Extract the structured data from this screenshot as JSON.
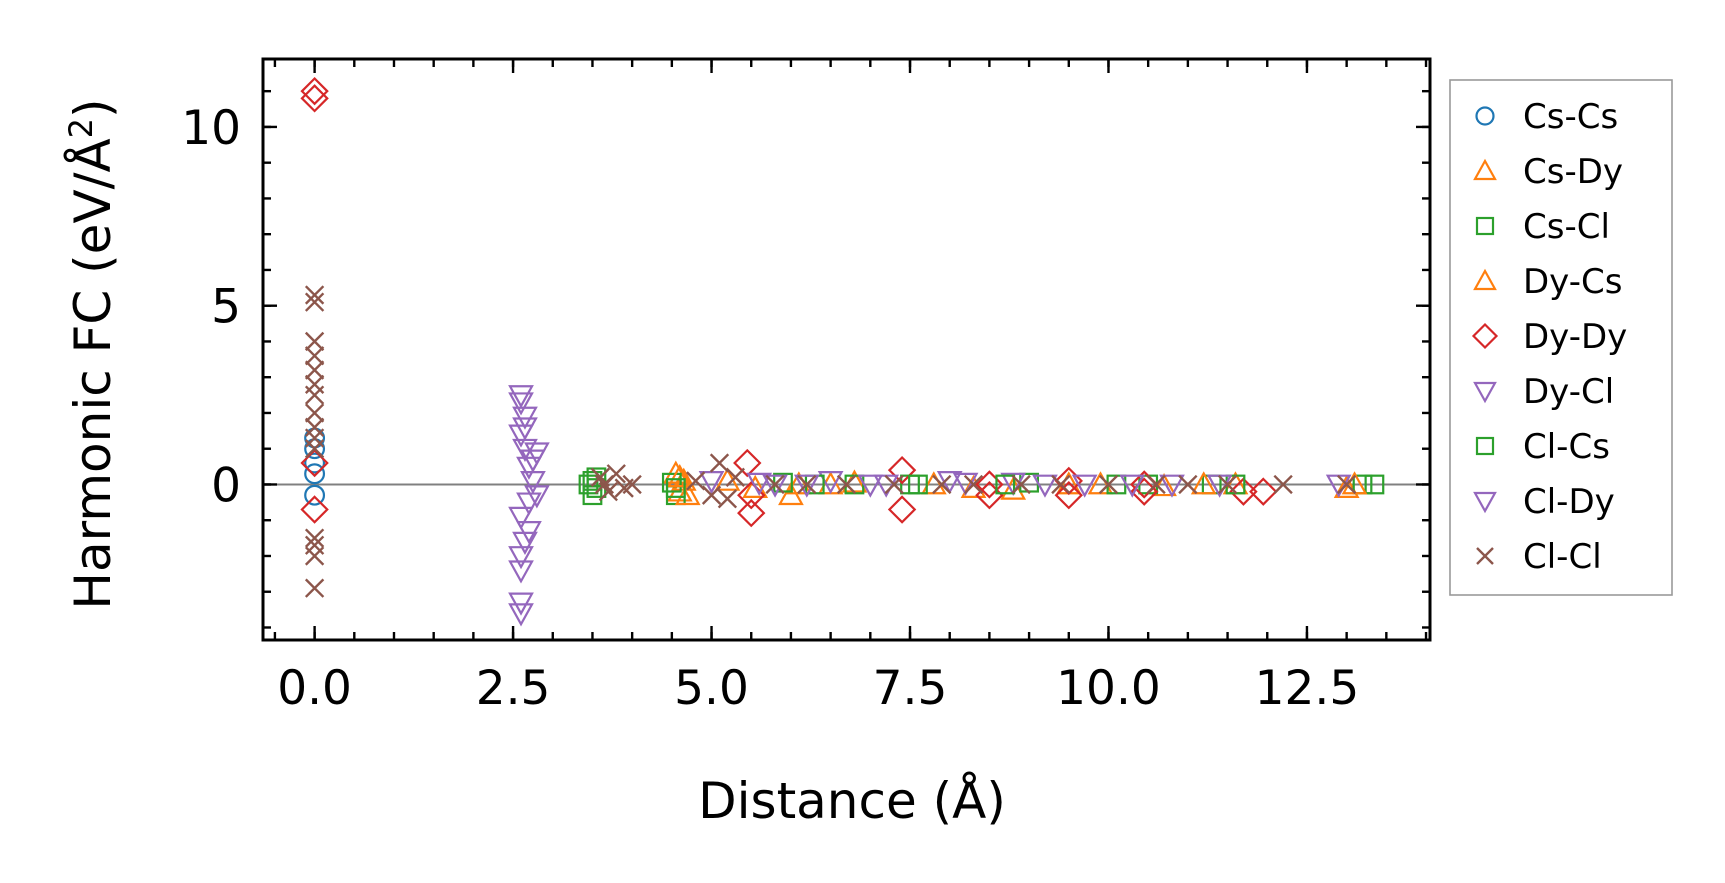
{
  "chart_data": {
    "type": "scatter",
    "title": "",
    "xlabel": "Distance (Å)",
    "ylabel_main": "Harmonic FC (eV/Å",
    "ylabel_sup": "2",
    "ylabel_close": ")",
    "xlim": [
      -0.65,
      14.05
    ],
    "ylim": [
      -4.35,
      11.9
    ],
    "xticks": [
      0.0,
      2.5,
      5.0,
      7.5,
      10.0,
      12.5
    ],
    "xtick_labels": [
      "0.0",
      "2.5",
      "5.0",
      "7.5",
      "10.0",
      "12.5"
    ],
    "yticks": [
      0,
      5,
      10
    ],
    "ytick_labels": [
      "0",
      "5",
      "10"
    ],
    "x_minor_step": 0.5,
    "y_minor_step": 1,
    "zero_line": true,
    "legend_position": "right, outside plot",
    "series": [
      {
        "name": "Cs-Cs",
        "marker": "circle",
        "color": "#1f77b4",
        "points": [
          [
            0,
            1.3
          ],
          [
            0,
            1.0
          ],
          [
            0,
            0.6
          ],
          [
            0,
            0.3
          ],
          [
            0,
            -0.3
          ]
        ]
      },
      {
        "name": "Cs-Dy",
        "marker": "triangle-up",
        "color": "#ff7f0e",
        "points": [
          [
            4.55,
            0.3
          ],
          [
            4.6,
            -0.2
          ],
          [
            4.65,
            0.1
          ],
          [
            5.55,
            -0.1
          ],
          [
            6.0,
            -0.3
          ],
          [
            6.1,
            0.0
          ],
          [
            6.8,
            0.05
          ],
          [
            7.8,
            0.0
          ],
          [
            8.8,
            -0.15
          ],
          [
            9.9,
            0.0
          ],
          [
            10.7,
            -0.05
          ],
          [
            11.6,
            0.0
          ],
          [
            13.0,
            -0.1
          ]
        ]
      },
      {
        "name": "Cs-Cl",
        "marker": "square",
        "color": "#2ca02c",
        "points": [
          [
            3.45,
            0.0
          ],
          [
            3.5,
            -0.3
          ],
          [
            3.55,
            0.2
          ],
          [
            4.5,
            0.05
          ],
          [
            4.55,
            -0.3
          ],
          [
            5.9,
            0.05
          ],
          [
            6.8,
            0.0
          ],
          [
            7.5,
            0.0
          ],
          [
            9.0,
            0.05
          ],
          [
            10.5,
            0.0
          ],
          [
            11.3,
            0.0
          ],
          [
            13.2,
            0.0
          ],
          [
            13.35,
            0.0
          ]
        ]
      },
      {
        "name": "Dy-Cs",
        "marker": "triangle-up",
        "color": "#ff7f0e",
        "points": [
          [
            4.6,
            0.2
          ],
          [
            4.7,
            -0.3
          ],
          [
            5.2,
            0.1
          ],
          [
            6.5,
            0.0
          ],
          [
            8.3,
            -0.1
          ],
          [
            9.5,
            0.0
          ],
          [
            11.2,
            0.0
          ],
          [
            13.1,
            0.0
          ]
        ]
      },
      {
        "name": "Dy-Dy",
        "marker": "diamond",
        "color": "#d62728",
        "points": [
          [
            0,
            11.0
          ],
          [
            0,
            10.8
          ],
          [
            0,
            0.6
          ],
          [
            0,
            -0.7
          ],
          [
            5.45,
            0.6
          ],
          [
            5.5,
            -0.3
          ],
          [
            5.5,
            -0.8
          ],
          [
            7.4,
            0.4
          ],
          [
            7.4,
            -0.7
          ],
          [
            8.5,
            0.0
          ],
          [
            8.5,
            -0.3
          ],
          [
            9.5,
            0.1
          ],
          [
            9.5,
            -0.3
          ],
          [
            10.45,
            0.0
          ],
          [
            10.45,
            -0.2
          ],
          [
            11.7,
            -0.2
          ],
          [
            11.95,
            -0.2
          ]
        ]
      },
      {
        "name": "Dy-Cl",
        "marker": "triangle-down",
        "color": "#9467bd",
        "points": [
          [
            2.6,
            2.3
          ],
          [
            2.65,
            1.9
          ],
          [
            2.6,
            1.4
          ],
          [
            2.65,
            1.0
          ],
          [
            2.7,
            0.5
          ],
          [
            2.8,
            0.9
          ],
          [
            2.75,
            0.1
          ],
          [
            2.8,
            -0.3
          ],
          [
            2.6,
            -0.9
          ],
          [
            2.7,
            -1.3
          ],
          [
            2.6,
            -2.0
          ],
          [
            2.6,
            -2.4
          ],
          [
            2.6,
            -3.3
          ],
          [
            5.0,
            0.1
          ],
          [
            5.8,
            0.0
          ],
          [
            6.5,
            0.1
          ],
          [
            7.2,
            0.0
          ],
          [
            8.0,
            0.1
          ],
          [
            8.8,
            0.05
          ],
          [
            9.7,
            0.0
          ],
          [
            10.8,
            0.0
          ],
          [
            12.9,
            0.0
          ]
        ]
      },
      {
        "name": "Cl-Cs",
        "marker": "square",
        "color": "#2ca02c",
        "points": [
          [
            3.5,
            0.1
          ],
          [
            3.55,
            -0.1
          ],
          [
            4.55,
            -0.1
          ],
          [
            6.3,
            0.0
          ],
          [
            7.6,
            0.0
          ],
          [
            8.7,
            0.0
          ],
          [
            10.1,
            0.0
          ],
          [
            11.6,
            0.0
          ]
        ]
      },
      {
        "name": "Cl-Dy",
        "marker": "triangle-down",
        "color": "#9467bd",
        "points": [
          [
            2.6,
            2.5
          ],
          [
            2.65,
            1.6
          ],
          [
            2.75,
            0.7
          ],
          [
            2.7,
            -0.5
          ],
          [
            2.65,
            -1.6
          ],
          [
            2.6,
            -3.6
          ],
          [
            5.6,
            0.05
          ],
          [
            6.2,
            0.0
          ],
          [
            7.0,
            0.0
          ],
          [
            8.2,
            0.05
          ],
          [
            9.2,
            0.0
          ],
          [
            10.3,
            0.0
          ],
          [
            11.4,
            0.0
          ]
        ]
      },
      {
        "name": "Cl-Cl",
        "marker": "x",
        "color": "#8c564b",
        "points": [
          [
            0,
            5.3
          ],
          [
            0,
            5.1
          ],
          [
            0,
            4.0
          ],
          [
            0,
            3.6
          ],
          [
            0,
            3.2
          ],
          [
            0,
            2.8
          ],
          [
            0,
            2.5
          ],
          [
            0,
            2.0
          ],
          [
            0,
            1.6
          ],
          [
            0,
            1.3
          ],
          [
            0,
            1.0
          ],
          [
            0,
            -1.5
          ],
          [
            0,
            -1.7
          ],
          [
            0,
            -2.0
          ],
          [
            0,
            -2.9
          ],
          [
            3.6,
            0.2
          ],
          [
            3.7,
            -0.2
          ],
          [
            3.8,
            0.3
          ],
          [
            3.9,
            -0.1
          ],
          [
            4.0,
            0.0
          ],
          [
            3.65,
            0.0
          ],
          [
            4.8,
            0.1
          ],
          [
            5.0,
            -0.3
          ],
          [
            5.1,
            0.6
          ],
          [
            5.2,
            -0.4
          ],
          [
            5.3,
            0.2
          ],
          [
            5.8,
            0.0
          ],
          [
            6.2,
            0.0
          ],
          [
            6.7,
            0.0
          ],
          [
            7.3,
            0.0
          ],
          [
            7.9,
            0.0
          ],
          [
            8.3,
            0.0
          ],
          [
            8.9,
            0.0
          ],
          [
            9.4,
            0.0
          ],
          [
            10.0,
            0.0
          ],
          [
            10.6,
            0.0
          ],
          [
            11.0,
            0.0
          ],
          [
            11.5,
            0.0
          ],
          [
            12.2,
            0.0
          ],
          [
            13.0,
            0.0
          ]
        ]
      }
    ]
  }
}
